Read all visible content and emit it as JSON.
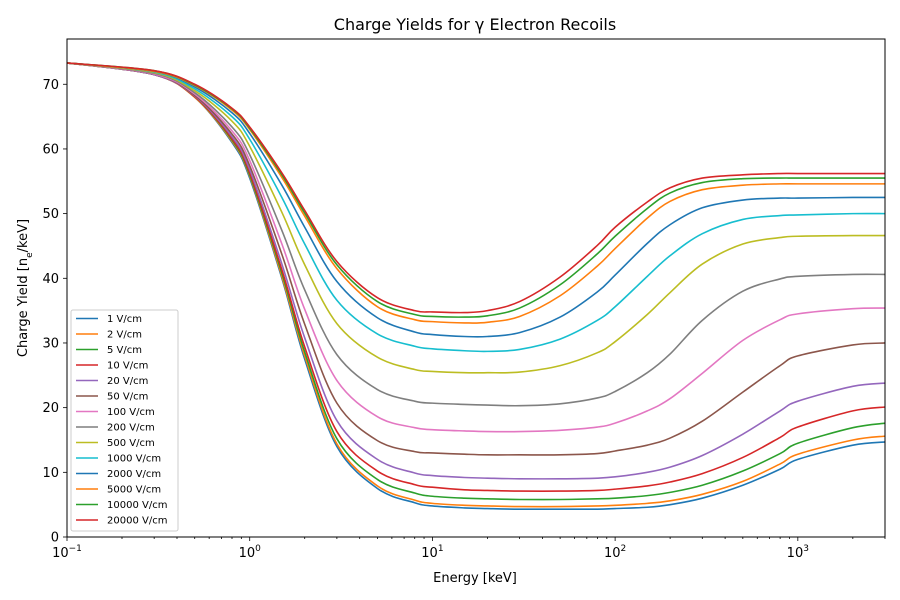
{
  "chart_data": {
    "type": "line",
    "title": "Charge Yields for γ Electron Recoils",
    "xlabel": "Energy [keV]",
    "ylabel_main": "Charge Yield [n",
    "ylabel_sub": "e",
    "ylabel_tail": "/keV]",
    "xscale": "log",
    "xlim": [
      0.1,
      3000
    ],
    "ylim": [
      0,
      77
    ],
    "grid": false,
    "legend_position": "lower-left",
    "x_ticks": [
      {
        "base": "10",
        "exp": "−1",
        "value": 0.1
      },
      {
        "base": "10",
        "exp": "0",
        "value": 1
      },
      {
        "base": "10",
        "exp": "1",
        "value": 10
      },
      {
        "base": "10",
        "exp": "2",
        "value": 100
      },
      {
        "base": "10",
        "exp": "3",
        "value": 1000
      }
    ],
    "y_ticks": [
      "0",
      "10",
      "20",
      "30",
      "40",
      "50",
      "60",
      "70"
    ],
    "x": [
      0.1,
      0.3,
      0.5,
      0.8,
      1,
      1.5,
      2,
      3,
      5,
      8,
      10,
      15,
      20,
      30,
      50,
      80,
      100,
      150,
      200,
      300,
      500,
      800,
      1000,
      2000,
      3000
    ],
    "series": [
      {
        "name": "1 V/cm",
        "color": "#1f77b4",
        "values": [
          73.3,
          71.5,
          68,
          61,
          55.5,
          40,
          27.5,
          14,
          7.5,
          5.3,
          4.8,
          4.5,
          4.4,
          4.3,
          4.3,
          4.3,
          4.4,
          4.6,
          5.0,
          6.0,
          8.0,
          10.5,
          12.0,
          14.2,
          14.7
        ]
      },
      {
        "name": "2 V/cm",
        "color": "#ff7f0e",
        "values": [
          73.3,
          71.5,
          68,
          61.2,
          55.8,
          40.3,
          28,
          14.4,
          7.9,
          5.7,
          5.2,
          4.9,
          4.8,
          4.7,
          4.7,
          4.8,
          4.9,
          5.2,
          5.6,
          6.6,
          8.6,
          11.3,
          12.8,
          15.0,
          15.6
        ]
      },
      {
        "name": "5 V/cm",
        "color": "#2ca02c",
        "values": [
          73.3,
          71.5,
          68.1,
          61.4,
          56,
          40.8,
          28.6,
          15.2,
          8.9,
          6.8,
          6.3,
          6.0,
          5.9,
          5.8,
          5.8,
          5.9,
          6.0,
          6.4,
          6.9,
          8.0,
          10.2,
          12.9,
          14.5,
          16.9,
          17.6
        ]
      },
      {
        "name": "10 V/cm",
        "color": "#d62728",
        "values": [
          73.3,
          71.5,
          68.1,
          61.6,
          56.3,
          41.3,
          29.4,
          16.3,
          10.2,
          8.1,
          7.7,
          7.3,
          7.2,
          7.1,
          7.1,
          7.2,
          7.4,
          7.9,
          8.5,
          9.8,
          12.3,
          15.4,
          17.0,
          19.5,
          20.1
        ]
      },
      {
        "name": "20 V/cm",
        "color": "#9467bd",
        "values": [
          73.3,
          71.5,
          68.2,
          61.9,
          56.8,
          42.2,
          30.8,
          18,
          12,
          9.9,
          9.5,
          9.2,
          9.1,
          9.0,
          9.0,
          9.1,
          9.3,
          10.0,
          10.8,
          12.6,
          15.9,
          19.5,
          21.0,
          23.3,
          23.8
        ]
      },
      {
        "name": "50 V/cm",
        "color": "#8c564b",
        "values": [
          73.3,
          71.6,
          68.3,
          62.3,
          57.4,
          43.7,
          32.9,
          20.7,
          14.9,
          13.2,
          13.0,
          12.8,
          12.7,
          12.7,
          12.7,
          12.9,
          13.3,
          14.2,
          15.3,
          17.9,
          22.4,
          26.5,
          28.0,
          29.7,
          30.0
        ]
      },
      {
        "name": "100 V/cm",
        "color": "#e377c2",
        "values": [
          73.3,
          71.6,
          68.5,
          62.8,
          58.2,
          45.3,
          35.2,
          24.2,
          18.6,
          16.9,
          16.6,
          16.4,
          16.3,
          16.3,
          16.5,
          17.0,
          17.6,
          19.5,
          21.4,
          25.3,
          30.4,
          33.6,
          34.5,
          35.3,
          35.4
        ]
      },
      {
        "name": "200 V/cm",
        "color": "#7f7f7f",
        "values": [
          73.3,
          71.7,
          68.7,
          63.4,
          59.1,
          47.4,
          38.2,
          28.2,
          22.8,
          21.0,
          20.7,
          20.5,
          20.4,
          20.3,
          20.6,
          21.5,
          22.5,
          25.4,
          28.3,
          33.5,
          38.0,
          39.9,
          40.3,
          40.6,
          40.6
        ]
      },
      {
        "name": "500 V/cm",
        "color": "#bcbd22",
        "values": [
          73.3,
          71.8,
          69.0,
          64.3,
          60.4,
          50.2,
          42.1,
          33.0,
          27.8,
          25.9,
          25.6,
          25.4,
          25.4,
          25.5,
          26.5,
          28.5,
          30.2,
          34.4,
          37.8,
          42.2,
          45.3,
          46.3,
          46.5,
          46.6,
          46.6
        ]
      },
      {
        "name": "1000 V/cm",
        "color": "#17becf",
        "values": [
          73.3,
          71.9,
          69.3,
          65.0,
          61.5,
          52.5,
          45.3,
          36.6,
          31.4,
          29.5,
          29.1,
          28.8,
          28.7,
          29.0,
          30.6,
          33.5,
          35.6,
          40.3,
          43.5,
          46.9,
          49.1,
          49.7,
          49.8,
          50.0,
          50.0
        ]
      },
      {
        "name": "2000 V/cm",
        "color": "#1f77b4",
        "values": [
          73.3,
          72.0,
          69.6,
          65.6,
          62.4,
          54.4,
          47.9,
          39.5,
          33.9,
          31.7,
          31.3,
          31.0,
          31.0,
          31.6,
          34.0,
          37.9,
          40.5,
          45.4,
          48.3,
          50.9,
          52.1,
          52.4,
          52.4,
          52.5,
          52.5
        ]
      },
      {
        "name": "5000 V/cm",
        "color": "#ff7f0e",
        "values": [
          73.3,
          72.0,
          69.8,
          66.0,
          63.0,
          55.6,
          49.6,
          41.5,
          35.6,
          33.6,
          33.3,
          33.1,
          33.2,
          34.1,
          37.3,
          41.9,
          44.6,
          49.3,
          51.9,
          53.7,
          54.4,
          54.6,
          54.6,
          54.6,
          54.6
        ]
      },
      {
        "name": "10000 V/cm",
        "color": "#2ca02c",
        "values": [
          73.3,
          72.1,
          69.9,
          66.2,
          63.2,
          56.0,
          50.1,
          42.1,
          36.4,
          34.4,
          34.1,
          34.0,
          34.2,
          35.4,
          39.0,
          43.8,
          46.5,
          50.8,
          53.2,
          54.8,
          55.4,
          55.5,
          55.5,
          55.5,
          55.5
        ]
      },
      {
        "name": "20000 V/cm",
        "color": "#d62728",
        "values": [
          73.3,
          72.1,
          70.0,
          66.3,
          63.4,
          56.3,
          50.5,
          42.6,
          37.0,
          35.0,
          34.8,
          34.7,
          35.0,
          36.4,
          40.2,
          45.1,
          47.9,
          51.8,
          54.0,
          55.5,
          56.0,
          56.2,
          56.2,
          56.2,
          56.2
        ]
      }
    ]
  }
}
